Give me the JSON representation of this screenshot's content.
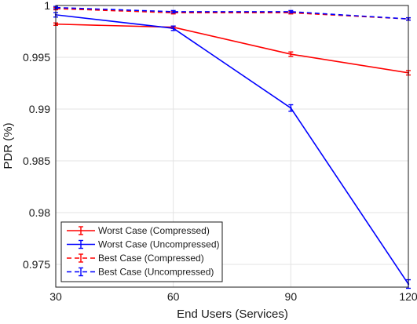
{
  "chart_data": {
    "type": "line",
    "title": "",
    "xlabel": "End Users (Services)",
    "ylabel": "PDR (%)",
    "x": [
      30,
      60,
      90,
      120
    ],
    "x_ticks": [
      "30",
      "60",
      "90",
      "120"
    ],
    "xlim": [
      30,
      120
    ],
    "ylim": [
      0.9728,
      1.0
    ],
    "y_ticks": [
      "0.975",
      "0.98",
      "0.985",
      "0.99",
      "0.995",
      "1"
    ],
    "grid": true,
    "legend_position": "bottom-left",
    "series": [
      {
        "name": "Worst Case (Compressed)",
        "color": "#ff0000",
        "dashed": false,
        "values": [
          0.9982,
          0.9979,
          0.9953,
          0.9935
        ],
        "errors": [
          0.0,
          0.0,
          0.0001,
          0.0001
        ]
      },
      {
        "name": "Worst Case (Uncompressed)",
        "color": "#0000ff",
        "dashed": false,
        "values": [
          0.9991,
          0.9978,
          0.9901,
          0.9731
        ],
        "errors": [
          0.0001,
          0.0001,
          0.0002,
          0.0003
        ]
      },
      {
        "name": "Best Case (Compressed)",
        "color": "#ff0000",
        "dashed": true,
        "values": [
          0.9997,
          0.9993,
          0.9993,
          0.9987
        ],
        "errors": [
          0.0,
          0.0,
          0.0,
          0.0
        ]
      },
      {
        "name": "Best Case (Uncompressed)",
        "color": "#0000ff",
        "dashed": true,
        "values": [
          0.9998,
          0.9994,
          0.9994,
          0.9987
        ],
        "errors": [
          0.0,
          0.0,
          0.0,
          0.0
        ]
      }
    ]
  }
}
